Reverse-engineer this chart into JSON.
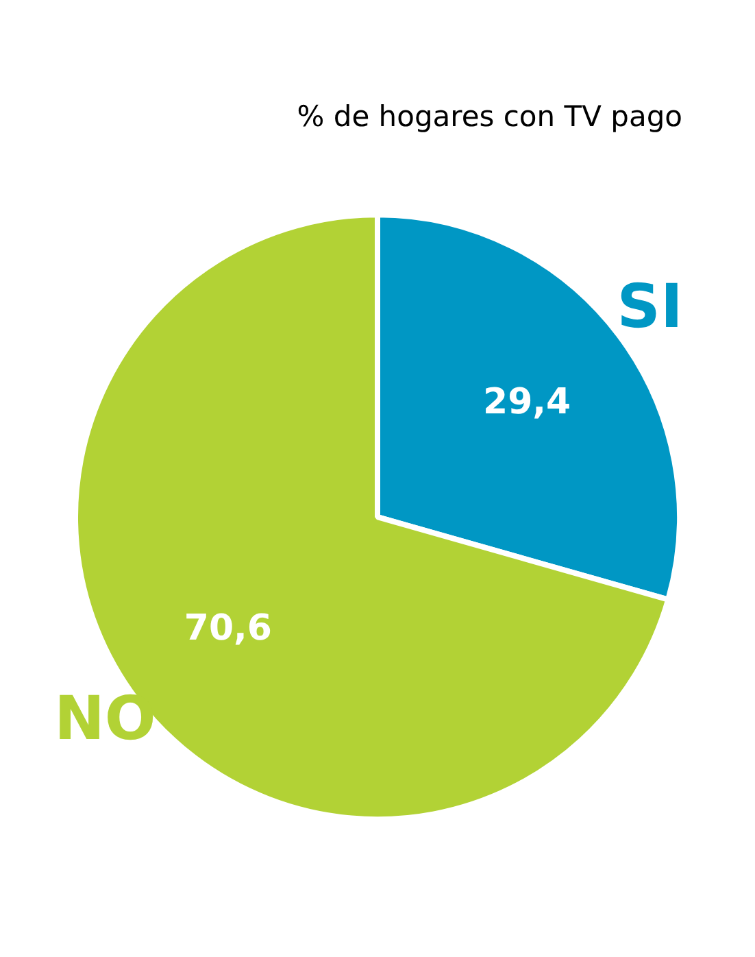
{
  "chart_data": {
    "type": "pie",
    "title": "% de hogares con TV pago",
    "categories": [
      "SI",
      "NO"
    ],
    "values": [
      29.4,
      70.6
    ],
    "colors": [
      "#0097c4",
      "#b2d235"
    ],
    "value_labels": [
      "29,4",
      "70,6"
    ]
  }
}
